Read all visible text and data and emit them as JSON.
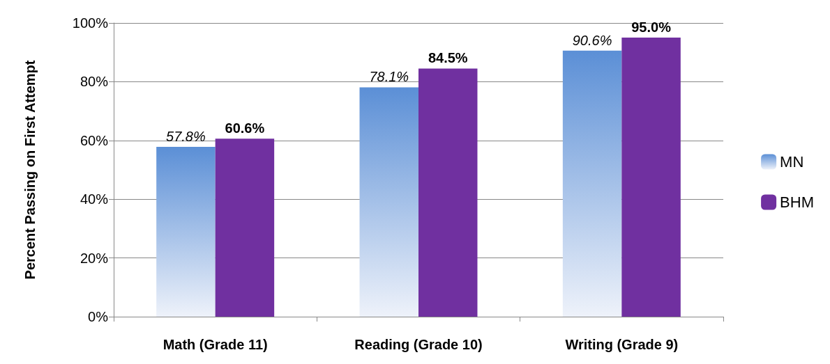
{
  "chart_data": {
    "type": "bar",
    "ylabel": "Percent Passing on First Attempt",
    "categories": [
      "Math (Grade 11)",
      "Reading (Grade 10)",
      "Writing (Grade 9)"
    ],
    "series": [
      {
        "name": "MN",
        "color": "#5b8fd6",
        "values": [
          57.8,
          78.1,
          90.6
        ],
        "value_labels": [
          "57.8%",
          "78.1%",
          "90.6%"
        ]
      },
      {
        "name": "BHM",
        "color": "#7030a0",
        "values": [
          60.6,
          84.5,
          95.0
        ],
        "value_labels": [
          "60.6%",
          "84.5%",
          "95.0%"
        ]
      }
    ],
    "ylim": [
      0,
      100
    ],
    "yticks": [
      {
        "value": 0,
        "label": "0%"
      },
      {
        "value": 20,
        "label": "20%"
      },
      {
        "value": 40,
        "label": "40%"
      },
      {
        "value": 60,
        "label": "60%"
      },
      {
        "value": 80,
        "label": "80%"
      },
      {
        "value": 100,
        "label": "100%"
      }
    ],
    "grid": "y",
    "legend": "right"
  }
}
